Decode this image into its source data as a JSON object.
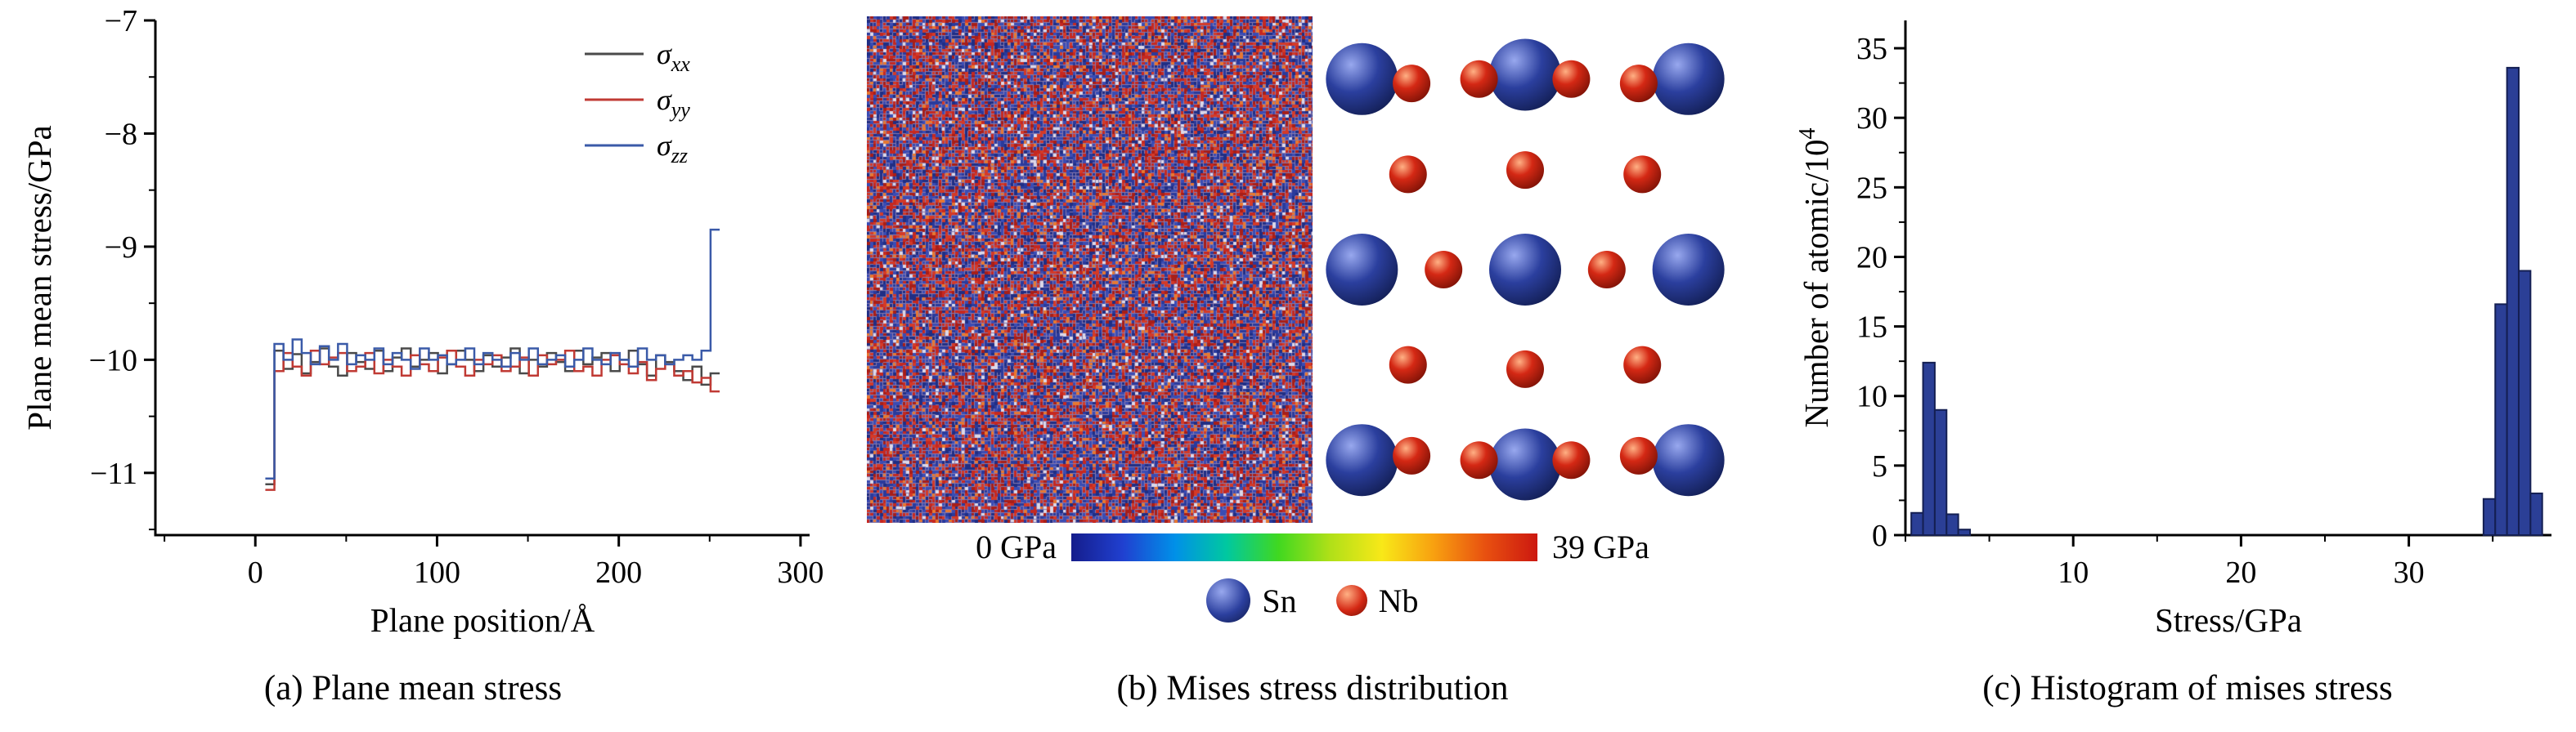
{
  "figure": {
    "background": "#ffffff",
    "panels": {
      "a": {
        "caption": "(a) Plane mean stress"
      },
      "b": {
        "caption": "(b) Mises stress distribution",
        "colorbar": {
          "min_label": "0 GPa",
          "max_label": "39 GPa",
          "gradient": [
            "#151d8c",
            "#2040d0",
            "#0090e8",
            "#00c8a0",
            "#40d820",
            "#b0e018",
            "#f8e818",
            "#f8a010",
            "#e85010",
            "#cc1810"
          ]
        },
        "legend": {
          "sn_label": "Sn",
          "nb_label": "Nb",
          "sn_color": "#2b3f9e",
          "nb_color": "#d42814"
        },
        "speckle_palette": {
          "blues": [
            "#2a3a9c",
            "#3a4cb4",
            "#202e84"
          ],
          "reds": [
            "#c62820",
            "#d43a28",
            "#a81e18"
          ],
          "oranges": [
            "#e87830"
          ],
          "lights": [
            "#dcd8e8"
          ]
        },
        "lattice": {
          "sn_radius": 44,
          "nb_radius": 23,
          "sn_positions": [
            [
              0.04,
              0.06
            ],
            [
              0.5,
              0.05
            ],
            [
              0.96,
              0.06
            ],
            [
              0.04,
              0.5
            ],
            [
              0.5,
              0.5
            ],
            [
              0.96,
              0.5
            ],
            [
              0.04,
              0.94
            ],
            [
              0.5,
              0.95
            ],
            [
              0.96,
              0.94
            ]
          ],
          "nb_positions": [
            [
              0.18,
              0.07
            ],
            [
              0.37,
              0.06
            ],
            [
              0.63,
              0.06
            ],
            [
              0.82,
              0.07
            ],
            [
              0.17,
              0.28
            ],
            [
              0.5,
              0.27
            ],
            [
              0.83,
              0.28
            ],
            [
              0.27,
              0.5
            ],
            [
              0.73,
              0.5
            ],
            [
              0.17,
              0.72
            ],
            [
              0.5,
              0.73
            ],
            [
              0.83,
              0.72
            ],
            [
              0.18,
              0.93
            ],
            [
              0.37,
              0.94
            ],
            [
              0.63,
              0.94
            ],
            [
              0.82,
              0.93
            ]
          ]
        }
      },
      "c": {
        "caption": "(c) Histogram of mises stress"
      }
    }
  },
  "chart_data": [
    {
      "id": "plane-mean-stress",
      "type": "line",
      "line_style": "step",
      "title": "",
      "xlabel": "Plane position/Å",
      "ylabel": "Plane mean stress/GPa",
      "xlim": [
        -55,
        305
      ],
      "ylim": [
        -11.55,
        -7
      ],
      "xticks": [
        0,
        100,
        200,
        300
      ],
      "yticks": [
        -7,
        -8,
        -9,
        -10,
        -11
      ],
      "x_minor_step": 50,
      "y_minor_step": 0.5,
      "legend_position": "top-right",
      "x_start": 8,
      "x_step": 5,
      "series": [
        {
          "name": "σ_xx",
          "color": "#4a4a4a",
          "values": [
            -11.1,
            -9.92,
            -10.08,
            -9.95,
            -10.12,
            -10.02,
            -9.9,
            -10.06,
            -10.14,
            -9.94,
            -10.02,
            -10.08,
            -9.92,
            -10.1,
            -9.98,
            -9.9,
            -10.06,
            -10.0,
            -9.94,
            -10.12,
            -10.04,
            -9.92,
            -10.0,
            -10.1,
            -9.96,
            -10.06,
            -9.98,
            -9.9,
            -10.12,
            -10.0,
            -10.06,
            -9.94,
            -10.02,
            -10.1,
            -9.92,
            -10.04,
            -9.98,
            -9.94,
            -10.1,
            -10.0,
            -9.92,
            -10.04,
            -10.14,
            -9.96,
            -10.02,
            -10.1,
            -10.18,
            -10.06,
            -10.22,
            -10.12
          ]
        },
        {
          "name": "σ_yy",
          "color": "#c03a34",
          "values": [
            -11.15,
            -10.1,
            -9.94,
            -10.06,
            -10.14,
            -9.92,
            -10.04,
            -9.98,
            -9.94,
            -10.1,
            -10.06,
            -9.94,
            -10.12,
            -10.0,
            -10.06,
            -10.14,
            -9.96,
            -10.04,
            -10.1,
            -9.98,
            -9.92,
            -10.06,
            -10.14,
            -10.0,
            -10.04,
            -9.96,
            -10.1,
            -10.06,
            -9.98,
            -10.14,
            -9.96,
            -10.04,
            -10.0,
            -9.92,
            -10.1,
            -10.06,
            -10.14,
            -10.0,
            -9.96,
            -10.04,
            -10.12,
            -10.02,
            -10.18,
            -10.08,
            -10.04,
            -10.14,
            -10.1,
            -10.2,
            -10.16,
            -10.28
          ]
        },
        {
          "name": "σ_zz",
          "color": "#3a5aa8",
          "values": [
            -11.05,
            -9.86,
            -10.0,
            -9.82,
            -9.94,
            -10.04,
            -9.88,
            -10.0,
            -9.86,
            -10.04,
            -9.96,
            -10.0,
            -9.9,
            -10.04,
            -9.94,
            -10.0,
            -10.08,
            -9.9,
            -10.0,
            -9.96,
            -10.04,
            -10.0,
            -9.9,
            -10.04,
            -9.94,
            -10.0,
            -10.06,
            -9.94,
            -10.0,
            -9.9,
            -10.04,
            -10.0,
            -9.96,
            -10.06,
            -10.0,
            -9.9,
            -10.0,
            -10.04,
            -9.94,
            -10.0,
            -10.06,
            -9.9,
            -10.0,
            -9.96,
            -10.04,
            -10.0,
            -9.96,
            -10.0,
            -9.92,
            -8.85
          ]
        }
      ]
    },
    {
      "id": "mises-stress-histogram",
      "type": "bar",
      "title": "",
      "xlabel": "Stress/GPa",
      "ylabel": "Number of atomic/10^4",
      "xlim": [
        0,
        38.5
      ],
      "ylim": [
        0,
        37
      ],
      "xticks": [
        10,
        20,
        30
      ],
      "yticks": [
        0,
        5,
        10,
        15,
        20,
        25,
        30,
        35
      ],
      "x_minor_step": 5,
      "y_minor_step": 2.5,
      "grid": false,
      "bar_color": "#2b3f96",
      "bar_edge": "#141f52",
      "bar_width": 0.7,
      "bars": [
        [
          0.7,
          1.6
        ],
        [
          1.4,
          12.4
        ],
        [
          2.1,
          9.0
        ],
        [
          2.8,
          1.5
        ],
        [
          3.5,
          0.4
        ],
        [
          34.8,
          2.6
        ],
        [
          35.5,
          16.6
        ],
        [
          36.2,
          33.6
        ],
        [
          36.9,
          19.0
        ],
        [
          37.6,
          3.0
        ]
      ]
    }
  ]
}
